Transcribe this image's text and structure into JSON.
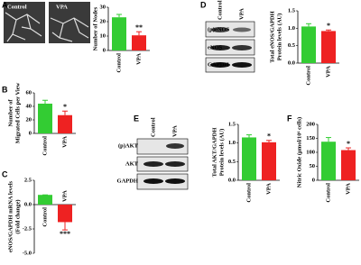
{
  "panel_labels": [
    "A",
    "B",
    "C",
    "D",
    "E",
    "F"
  ],
  "images": {
    "labels": [
      "Control",
      "VPA"
    ]
  },
  "blots": [
    {
      "columns": [
        "Control",
        "VPA"
      ],
      "rows": [
        "(p)eNOS",
        "eNOS",
        "GAPDH"
      ]
    },
    {
      "columns": [
        "Control",
        "VPA"
      ],
      "rows": [
        "(p)AKT",
        "AKT",
        "GAPDH"
      ]
    }
  ],
  "chart_data": [
    {
      "type": "bar",
      "ylabel": [
        "Number of Nodes"
      ],
      "categories": [
        "Control",
        "VPA"
      ],
      "values": [
        23,
        10.5
      ],
      "errors": [
        2,
        2.5
      ],
      "colors": [
        "#33cc33",
        "#ee2222"
      ],
      "annotations": [
        null,
        "**"
      ],
      "ylim": [
        0,
        30
      ],
      "yticks": [
        0,
        10,
        20,
        30
      ]
    },
    {
      "type": "bar",
      "ylabel": [
        "Number of",
        "Migrated Cells per View"
      ],
      "categories": [
        "Control",
        "VPA"
      ],
      "values": [
        44,
        27
      ],
      "errors": [
        5,
        6
      ],
      "colors": [
        "#33cc33",
        "#ee2222"
      ],
      "annotations": [
        null,
        "*"
      ],
      "ylim": [
        0,
        60
      ],
      "yticks": [
        0,
        20,
        40,
        60
      ]
    },
    {
      "type": "bar",
      "ylabel": [
        "eNOS/GAPDH mRNA levels",
        "(Fold change)"
      ],
      "categories": [
        "Control",
        "VPA"
      ],
      "values": [
        1,
        -1.8
      ],
      "errors": [
        0,
        0.8
      ],
      "colors": [
        "#33cc33",
        "#ee2222"
      ],
      "annotations": [
        null,
        "***"
      ],
      "ylim": [
        -5,
        2.5
      ],
      "yticks": [
        2.5,
        {
          "value": 0,
          "label": "0.0"
        },
        -2.5,
        {
          "value": -5,
          "label": "-5.0"
        }
      ]
    },
    {
      "type": "bar",
      "ylabel": [
        "Total eNOS/GAPDH",
        "Protein levels (AU)"
      ],
      "categories": [
        "Control",
        "VPA"
      ],
      "values": [
        1.05,
        0.92
      ],
      "errors": [
        0.08,
        0.03
      ],
      "colors": [
        "#33cc33",
        "#ee2222"
      ],
      "annotations": [
        null,
        "*"
      ],
      "ylim": [
        0,
        1.5
      ],
      "yticks": [
        {
          "value": 0,
          "label": "0.0"
        },
        0.5,
        {
          "value": 1,
          "label": "1.0"
        },
        1.5
      ]
    },
    {
      "type": "bar",
      "ylabel": [
        "Total AKT/GAPDH",
        "Protein levels (AU)"
      ],
      "categories": [
        "Control",
        "VPA"
      ],
      "values": [
        1.15,
        1.02
      ],
      "errors": [
        0.07,
        0.05
      ],
      "colors": [
        "#33cc33",
        "#ee2222"
      ],
      "annotations": [
        null,
        "*"
      ],
      "ylim": [
        0,
        1.5
      ],
      "yticks": [
        {
          "value": 0,
          "label": "0.0"
        },
        0.5,
        {
          "value": 1,
          "label": "1.0"
        },
        1.5
      ]
    },
    {
      "type": "bar",
      "ylabel": [
        "Nitric Oxide (µmol/10⁶ cells)"
      ],
      "categories": [
        "Control",
        "VPA"
      ],
      "values": [
        138,
        108
      ],
      "errors": [
        15,
        8
      ],
      "colors": [
        "#33cc33",
        "#ee2222"
      ],
      "annotations": [
        null,
        "*"
      ],
      "ylim": [
        0,
        200
      ],
      "yticks": [
        0,
        50,
        100,
        150,
        200
      ]
    }
  ]
}
